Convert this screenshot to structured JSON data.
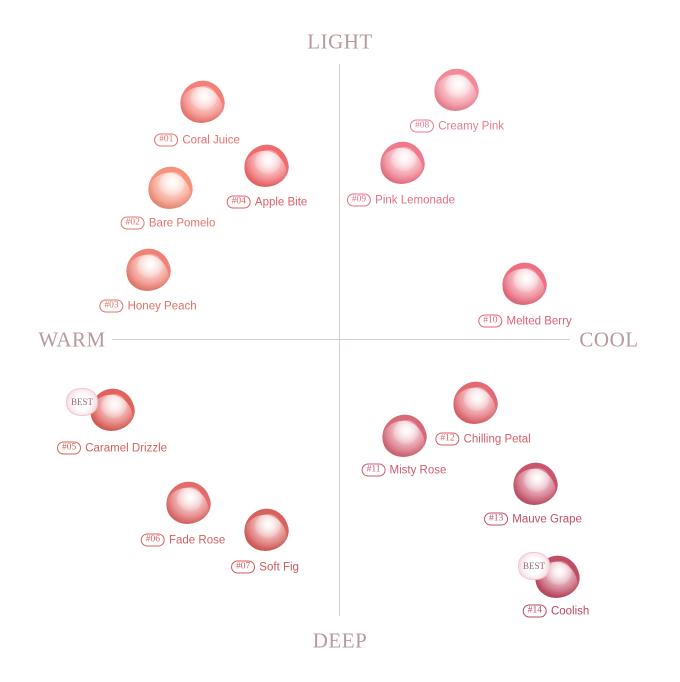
{
  "axes": {
    "top": "LIGHT",
    "bottom": "DEEP",
    "left": "WARM",
    "right": "COOL",
    "color": "#b89a9e"
  },
  "badge_label": "BEST",
  "items": [
    {
      "num": "#01",
      "name": "Coral Juice",
      "color": "#f47f78",
      "text_color": "#e8706c"
    },
    {
      "num": "#02",
      "name": "Bare Pomelo",
      "color": "#f5937c",
      "text_color": "#e8736a"
    },
    {
      "num": "#03",
      "name": "Honey Peach",
      "color": "#f08275",
      "text_color": "#e36f68"
    },
    {
      "num": "#04",
      "name": "Apple Bite",
      "color": "#f06a6e",
      "text_color": "#e45e65"
    },
    {
      "num": "#05",
      "name": "Caramel Drizzle",
      "color": "#e0625c",
      "text_color": "#d9605c",
      "best": true
    },
    {
      "num": "#06",
      "name": "Fade Rose",
      "color": "#e26c6c",
      "text_color": "#d9605e"
    },
    {
      "num": "#07",
      "name": "Soft Fig",
      "color": "#d9615e",
      "text_color": "#d05a5a"
    },
    {
      "num": "#08",
      "name": "Creamy Pink",
      "color": "#f28a9a",
      "text_color": "#ea7b90"
    },
    {
      "num": "#09",
      "name": "Pink Lemonade",
      "color": "#f07a8c",
      "text_color": "#e66f87"
    },
    {
      "num": "#10",
      "name": "Melted Berry",
      "color": "#ec6f83",
      "text_color": "#e0617a"
    },
    {
      "num": "#11",
      "name": "Misty Rose",
      "color": "#d9697a",
      "text_color": "#cf5b72"
    },
    {
      "num": "#12",
      "name": "Chilling Petal",
      "color": "#e26a72",
      "text_color": "#d95d6a"
    },
    {
      "num": "#13",
      "name": "Mauve Grape",
      "color": "#c9566e",
      "text_color": "#c14f68"
    },
    {
      "num": "#14",
      "name": "Coolish",
      "color": "#c24d66",
      "text_color": "#bb4862",
      "best": true
    }
  ]
}
